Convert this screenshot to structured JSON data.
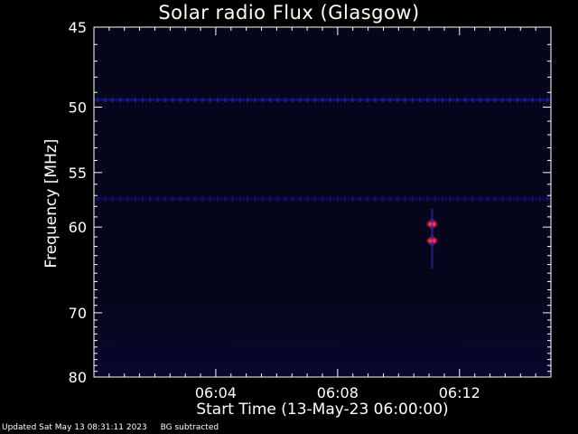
{
  "chart_data": {
    "type": "heatmap",
    "title": "Solar radio Flux (Glasgow)",
    "xlabel": "Start Time (13-May-23 06:00:00)",
    "ylabel": "Frequency [MHz]",
    "ylim": [
      45,
      80
    ],
    "y_ticks": [
      45,
      50,
      55,
      60,
      70,
      80
    ],
    "y_tick_labels": [
      "45",
      "50",
      "55",
      "60",
      "70",
      "80"
    ],
    "x_ticks": [
      "06:04",
      "06:08",
      "06:12"
    ],
    "x_range_minutes": [
      0,
      15
    ],
    "x_tick_positions_minutes": [
      4,
      8,
      12
    ],
    "background_color": "#000000",
    "plot_background": "#05051a",
    "features": [
      {
        "kind": "band",
        "frequency": 49.5,
        "start_minute": 0,
        "end_minute": 15,
        "color": "#1a1aa0"
      },
      {
        "kind": "band",
        "frequency": 57.3,
        "start_minute": 0,
        "end_minute": 15,
        "color": "#12127a"
      },
      {
        "kind": "spot",
        "frequency": 59.7,
        "minute": 11.1,
        "color": "#ff3030"
      },
      {
        "kind": "spot",
        "frequency": 61.4,
        "minute": 11.1,
        "color": "#ff5050"
      }
    ]
  },
  "footer": {
    "updated": "Updated Sat May 13 08:31:11 2023",
    "note": "BG subtracted"
  }
}
